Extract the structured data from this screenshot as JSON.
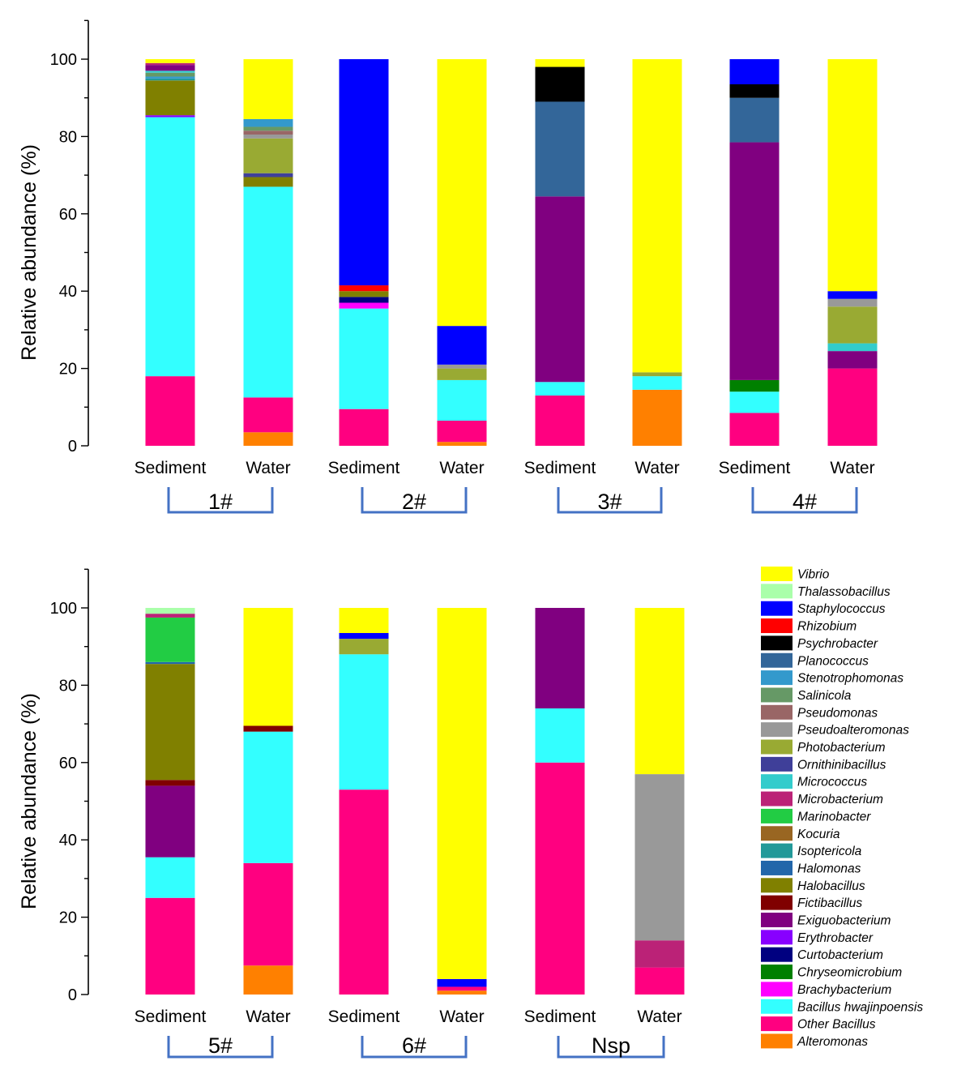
{
  "taxa": [
    {
      "name": "Vibrio",
      "color": "#FFFF00"
    },
    {
      "name": "Thalassobacillus",
      "color": "#AAFFAA"
    },
    {
      "name": "Staphylococcus",
      "color": "#0000FF"
    },
    {
      "name": "Rhizobium",
      "color": "#FF0000"
    },
    {
      "name": "Psychrobacter",
      "color": "#000000"
    },
    {
      "name": "Planococcus",
      "color": "#336699"
    },
    {
      "name": "Stenotrophomonas",
      "color": "#3399CC"
    },
    {
      "name": "Salinicola",
      "color": "#669966"
    },
    {
      "name": "Pseudomonas",
      "color": "#996666"
    },
    {
      "name": "Pseudoalteromonas",
      "color": "#999999"
    },
    {
      "name": "Photobacterium",
      "color": "#99AA33"
    },
    {
      "name": "Ornithinibacillus",
      "color": "#3F3F99"
    },
    {
      "name": "Micrococcus",
      "color": "#33CCCC"
    },
    {
      "name": "Microbacterium",
      "color": "#BB2277"
    },
    {
      "name": "Marinobacter",
      "color": "#22CC44"
    },
    {
      "name": "Kocuria",
      "color": "#996622"
    },
    {
      "name": "Isoptericola",
      "color": "#229999"
    },
    {
      "name": "Halomonas",
      "color": "#2266AA"
    },
    {
      "name": "Halobacillus",
      "color": "#808000"
    },
    {
      "name": "Fictibacillus",
      "color": "#800000"
    },
    {
      "name": "Exiguobacterium",
      "color": "#800080"
    },
    {
      "name": "Erythrobacter",
      "color": "#8800FF"
    },
    {
      "name": "Curtobacterium",
      "color": "#000080"
    },
    {
      "name": "Chryseomicrobium",
      "color": "#008000"
    },
    {
      "name": "Brachybacterium",
      "color": "#FF00FF"
    },
    {
      "name": "Bacillus hwajinpoensis",
      "color": "#33FFFF"
    },
    {
      "name": "Other Bacillus",
      "color": "#FF0080"
    },
    {
      "name": "Alteromonas",
      "color": "#FF8000"
    }
  ],
  "chart_data": [
    {
      "type": "bar",
      "stacked": true,
      "ylabel": "Relative abundance (%)",
      "ylim": [
        0,
        110
      ],
      "yticks": [
        "0",
        "20",
        "40",
        "60",
        "80",
        "100"
      ],
      "groups": [
        "1#",
        "2#",
        "3#",
        "4#"
      ],
      "bars": [
        {
          "category": "Sediment",
          "group": "1#",
          "segments": [
            {
              "taxon": "Other Bacillus",
              "value": 18
            },
            {
              "taxon": "Bacillus hwajinpoensis",
              "value": 67
            },
            {
              "taxon": "Erythrobacter",
              "value": 0.5
            },
            {
              "taxon": "Halobacillus",
              "value": 9
            },
            {
              "taxon": "Isoptericola",
              "value": 0.5
            },
            {
              "taxon": "Stenotrophomonas",
              "value": 0.5
            },
            {
              "taxon": "Salinicola",
              "value": 1
            },
            {
              "taxon": "Micrococcus",
              "value": 0.5
            },
            {
              "taxon": "Exiguobacterium",
              "value": 1.5
            },
            {
              "taxon": "Microbacterium",
              "value": 0.5
            },
            {
              "taxon": "Vibrio",
              "value": 1
            }
          ]
        },
        {
          "category": "Water",
          "group": "1#",
          "segments": [
            {
              "taxon": "Alteromonas",
              "value": 3.5
            },
            {
              "taxon": "Other Bacillus",
              "value": 9
            },
            {
              "taxon": "Bacillus hwajinpoensis",
              "value": 54.5
            },
            {
              "taxon": "Halobacillus",
              "value": 2.5
            },
            {
              "taxon": "Ornithinibacillus",
              "value": 1
            },
            {
              "taxon": "Photobacterium",
              "value": 9
            },
            {
              "taxon": "Pseudoalteromonas",
              "value": 1
            },
            {
              "taxon": "Pseudomonas",
              "value": 1
            },
            {
              "taxon": "Salinicola",
              "value": 1
            },
            {
              "taxon": "Stenotrophomonas",
              "value": 2
            },
            {
              "taxon": "Vibrio",
              "value": 15.5
            }
          ]
        },
        {
          "category": "Sediment",
          "group": "2#",
          "segments": [
            {
              "taxon": "Other Bacillus",
              "value": 9.5
            },
            {
              "taxon": "Bacillus hwajinpoensis",
              "value": 26
            },
            {
              "taxon": "Brachybacterium",
              "value": 1.5
            },
            {
              "taxon": "Curtobacterium",
              "value": 1.5
            },
            {
              "taxon": "Halobacillus",
              "value": 1.5
            },
            {
              "taxon": "Rhizobium",
              "value": 1.5
            },
            {
              "taxon": "Staphylococcus",
              "value": 58.5
            }
          ]
        },
        {
          "category": "Water",
          "group": "2#",
          "segments": [
            {
              "taxon": "Alteromonas",
              "value": 1
            },
            {
              "taxon": "Other Bacillus",
              "value": 5.5
            },
            {
              "taxon": "Bacillus hwajinpoensis",
              "value": 10.5
            },
            {
              "taxon": "Photobacterium",
              "value": 3
            },
            {
              "taxon": "Pseudoalteromonas",
              "value": 1
            },
            {
              "taxon": "Staphylococcus",
              "value": 10
            },
            {
              "taxon": "Vibrio",
              "value": 69
            }
          ]
        },
        {
          "category": "Sediment",
          "group": "3#",
          "segments": [
            {
              "taxon": "Other Bacillus",
              "value": 13
            },
            {
              "taxon": "Bacillus hwajinpoensis",
              "value": 3.5
            },
            {
              "taxon": "Exiguobacterium",
              "value": 48
            },
            {
              "taxon": "Planococcus",
              "value": 24.5
            },
            {
              "taxon": "Psychrobacter",
              "value": 9
            },
            {
              "taxon": "Vibrio",
              "value": 2
            }
          ]
        },
        {
          "category": "Water",
          "group": "3#",
          "segments": [
            {
              "taxon": "Alteromonas",
              "value": 14.5
            },
            {
              "taxon": "Bacillus hwajinpoensis",
              "value": 3.5
            },
            {
              "taxon": "Photobacterium",
              "value": 1
            },
            {
              "taxon": "Vibrio",
              "value": 81
            }
          ]
        },
        {
          "category": "Sediment",
          "group": "4#",
          "segments": [
            {
              "taxon": "Other Bacillus",
              "value": 8.5
            },
            {
              "taxon": "Bacillus hwajinpoensis",
              "value": 5.5
            },
            {
              "taxon": "Chryseomicrobium",
              "value": 3
            },
            {
              "taxon": "Exiguobacterium",
              "value": 61.5
            },
            {
              "taxon": "Planococcus",
              "value": 11.5
            },
            {
              "taxon": "Psychrobacter",
              "value": 3.5
            },
            {
              "taxon": "Staphylococcus",
              "value": 6.5
            }
          ]
        },
        {
          "category": "Water",
          "group": "4#",
          "segments": [
            {
              "taxon": "Other Bacillus",
              "value": 20
            },
            {
              "taxon": "Exiguobacterium",
              "value": 4.5
            },
            {
              "taxon": "Micrococcus",
              "value": 2
            },
            {
              "taxon": "Photobacterium",
              "value": 9.5
            },
            {
              "taxon": "Pseudoalteromonas",
              "value": 2
            },
            {
              "taxon": "Staphylococcus",
              "value": 2
            },
            {
              "taxon": "Vibrio",
              "value": 60
            }
          ]
        }
      ]
    },
    {
      "type": "bar",
      "stacked": true,
      "ylabel": "Relative abundance (%)",
      "ylim": [
        0,
        110
      ],
      "yticks": [
        "0",
        "20",
        "40",
        "60",
        "80",
        "100"
      ],
      "groups": [
        "5#",
        "6#",
        "Nsp"
      ],
      "bars": [
        {
          "category": "Sediment",
          "group": "5#",
          "segments": [
            {
              "taxon": "Other Bacillus",
              "value": 25
            },
            {
              "taxon": "Bacillus hwajinpoensis",
              "value": 10.5
            },
            {
              "taxon": "Exiguobacterium",
              "value": 18.5
            },
            {
              "taxon": "Fictibacillus",
              "value": 1.5
            },
            {
              "taxon": "Halobacillus",
              "value": 30
            },
            {
              "taxon": "Halomonas",
              "value": 0.5
            },
            {
              "taxon": "Marinobacter",
              "value": 11.5
            },
            {
              "taxon": "Microbacterium",
              "value": 1
            },
            {
              "taxon": "Thalassobacillus",
              "value": 1.5
            }
          ]
        },
        {
          "category": "Water",
          "group": "5#",
          "segments": [
            {
              "taxon": "Alteromonas",
              "value": 7.5
            },
            {
              "taxon": "Other Bacillus",
              "value": 26.5
            },
            {
              "taxon": "Bacillus hwajinpoensis",
              "value": 34
            },
            {
              "taxon": "Fictibacillus",
              "value": 1.5
            },
            {
              "taxon": "Vibrio",
              "value": 30.5
            }
          ]
        },
        {
          "category": "Sediment",
          "group": "6#",
          "segments": [
            {
              "taxon": "Other Bacillus",
              "value": 53
            },
            {
              "taxon": "Bacillus hwajinpoensis",
              "value": 35
            },
            {
              "taxon": "Photobacterium",
              "value": 4
            },
            {
              "taxon": "Staphylococcus",
              "value": 1.5
            },
            {
              "taxon": "Vibrio",
              "value": 6.5
            }
          ]
        },
        {
          "category": "Water",
          "group": "6#",
          "segments": [
            {
              "taxon": "Alteromonas",
              "value": 1
            },
            {
              "taxon": "Other Bacillus",
              "value": 1
            },
            {
              "taxon": "Staphylococcus",
              "value": 2
            },
            {
              "taxon": "Vibrio",
              "value": 96
            }
          ]
        },
        {
          "category": "Sediment",
          "group": "Nsp",
          "segments": [
            {
              "taxon": "Other Bacillus",
              "value": 60
            },
            {
              "taxon": "Bacillus hwajinpoensis",
              "value": 14
            },
            {
              "taxon": "Exiguobacterium",
              "value": 26
            }
          ]
        },
        {
          "category": "Water",
          "group": "Nsp",
          "segments": [
            {
              "taxon": "Other Bacillus",
              "value": 7
            },
            {
              "taxon": "Microbacterium",
              "value": 7
            },
            {
              "taxon": "Pseudoalteromonas",
              "value": 43
            },
            {
              "taxon": "Vibrio",
              "value": 43
            }
          ]
        }
      ]
    }
  ]
}
